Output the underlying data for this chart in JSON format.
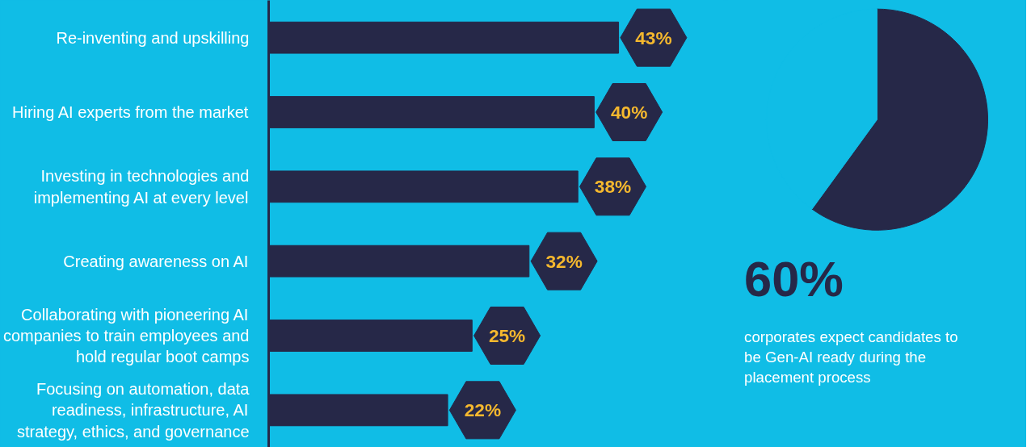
{
  "chart_data": [
    {
      "type": "bar",
      "orientation": "horizontal",
      "categories": [
        "Re-inventing and upskilling",
        "Hiring AI experts from the market",
        "Investing in technologies and implementing AI at every level",
        "Creating awareness on AI",
        "Collaborating with pioneering AI companies to train employees and hold regular boot camps",
        "Focusing on automation, data readiness, infrastructure, AI strategy, ethics, and governance"
      ],
      "values": [
        43,
        40,
        38,
        32,
        25,
        22
      ],
      "color": "#262848",
      "value_labels": [
        "43%",
        "40%",
        "38%",
        "32%",
        "25%",
        "22%"
      ],
      "grid": false
    },
    {
      "type": "pie",
      "categories": [
        null,
        null
      ],
      "values": [
        60,
        40
      ],
      "colors": [
        "#262848",
        "#10bde6"
      ],
      "value_labels": [
        "60%",
        null
      ],
      "annotations": [
        "corporates expect candidates to be Gen-AI ready during the placement process"
      ]
    }
  ]
}
